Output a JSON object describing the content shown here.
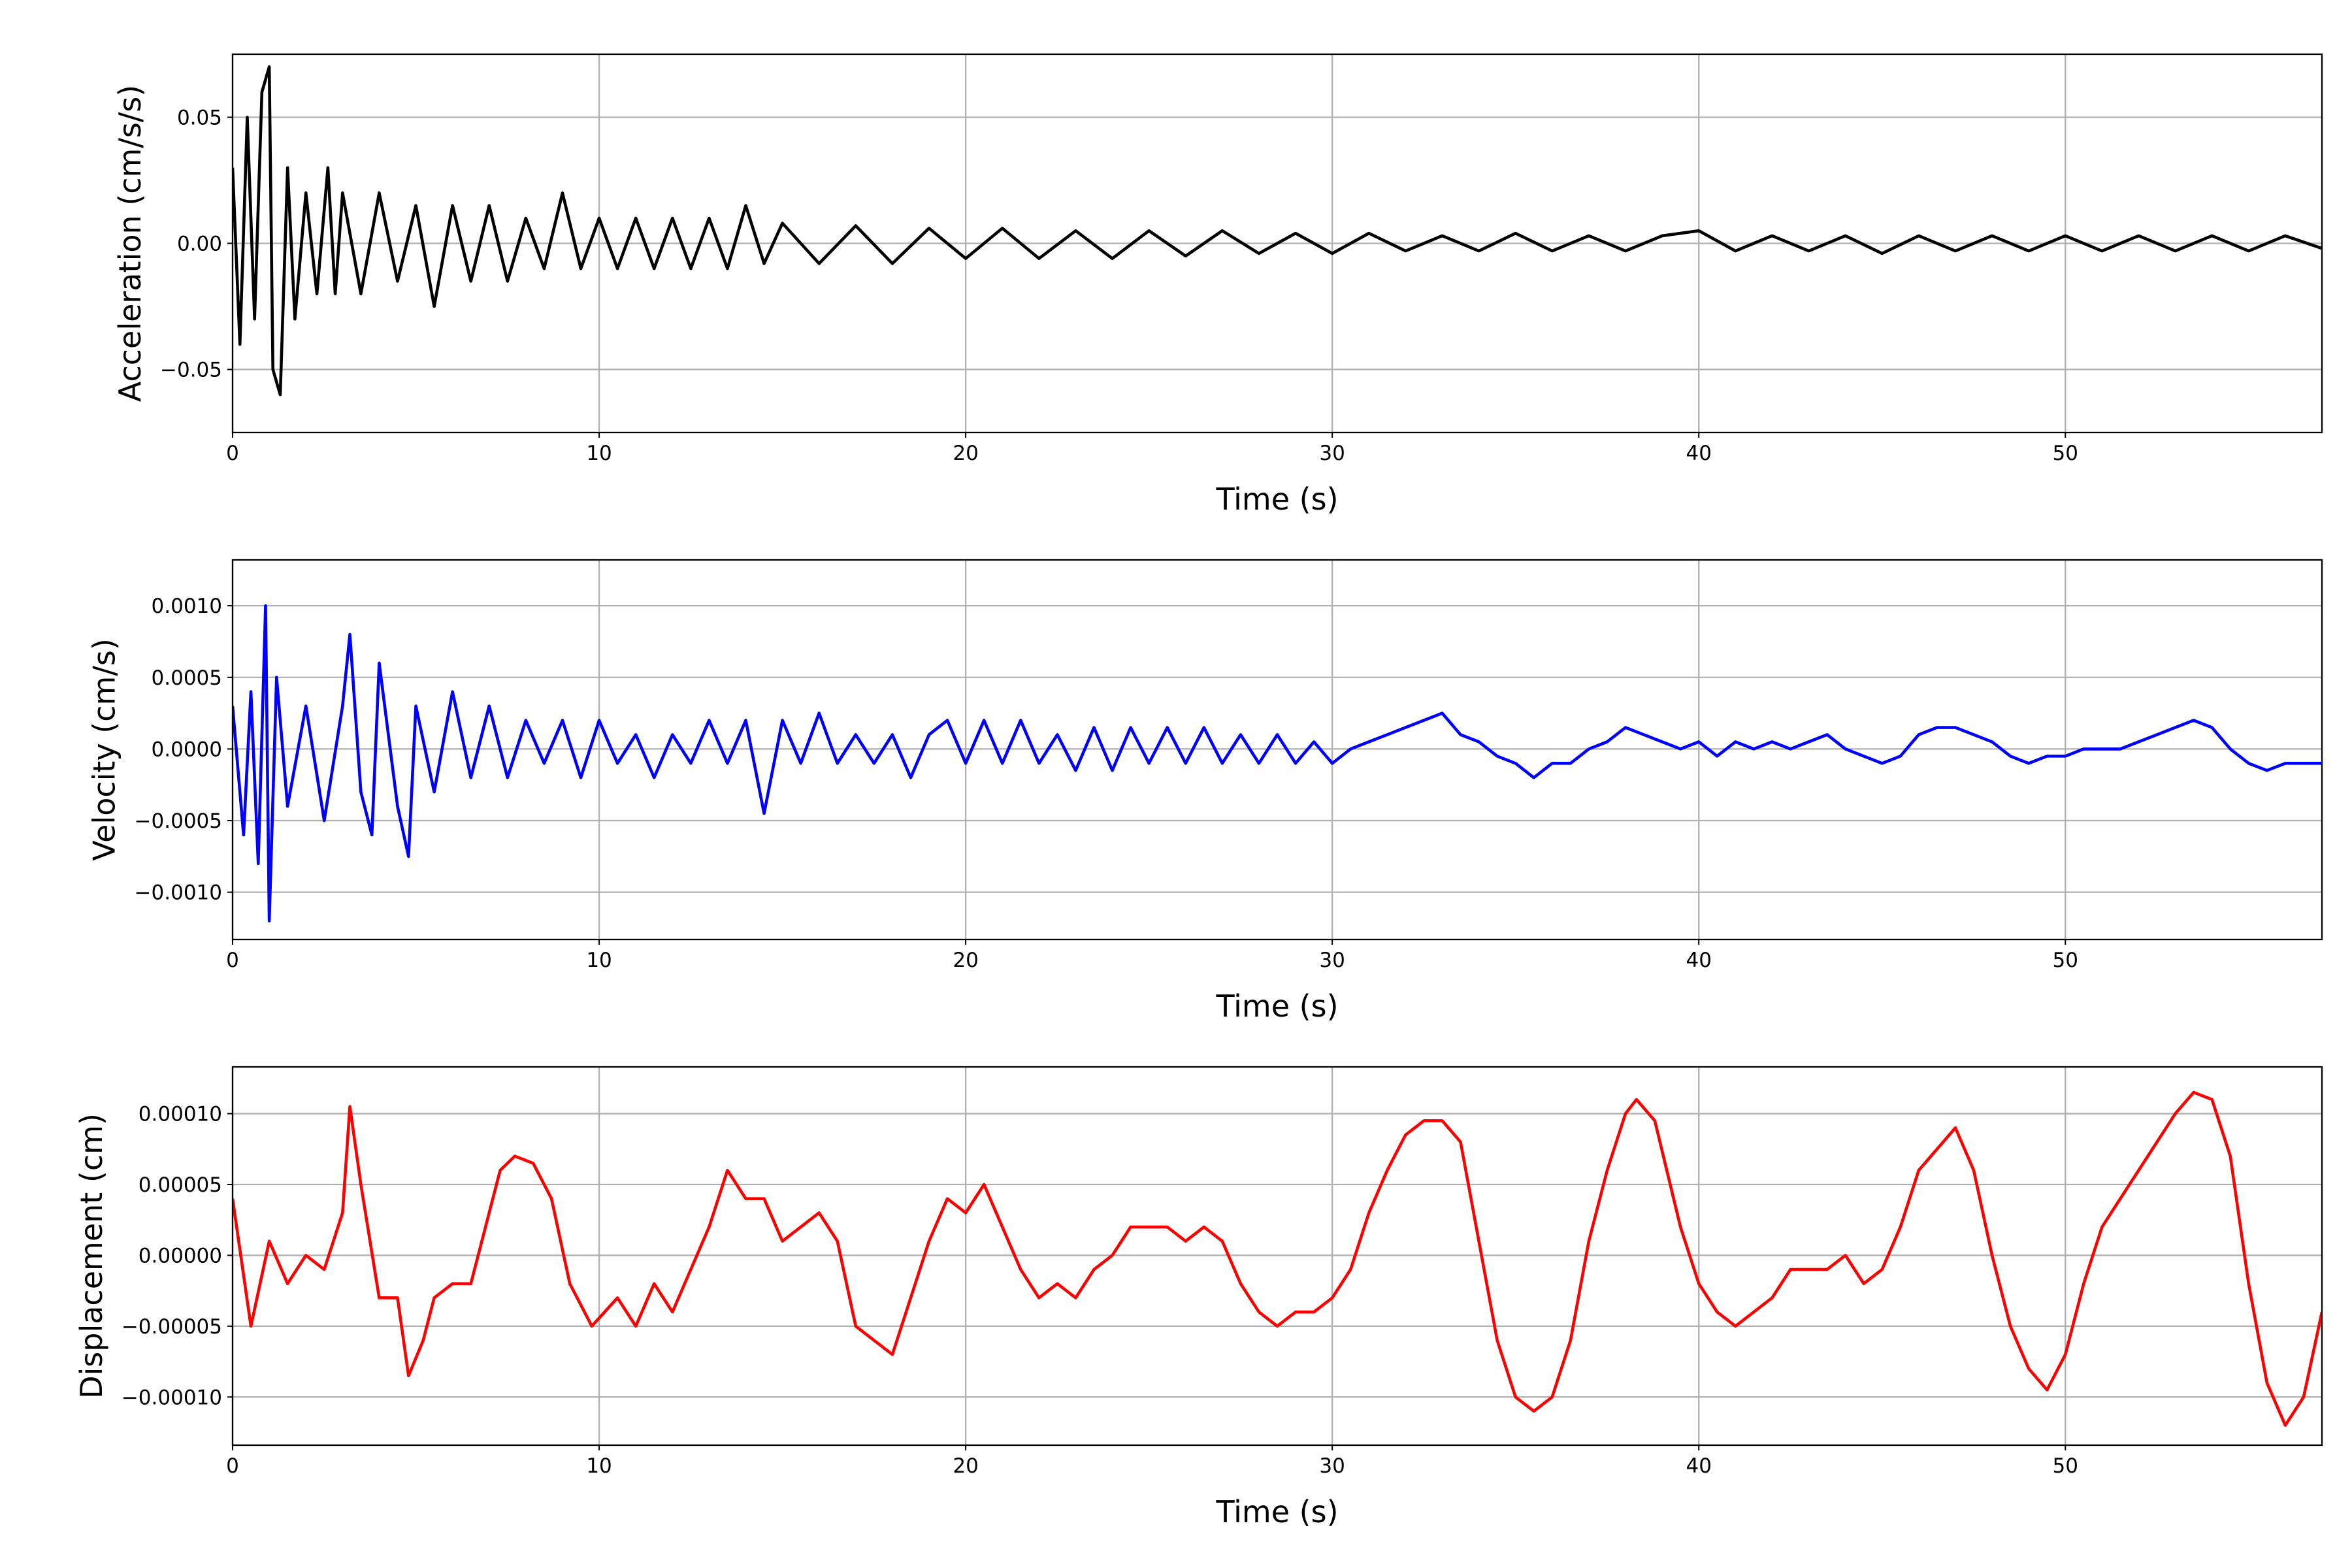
{
  "chart_data": [
    {
      "type": "line",
      "xlabel": "Time (s)",
      "ylabel": "Acceleration (cm/s/s)",
      "color": "#000000",
      "grid": true,
      "xlim": [
        0,
        57
      ],
      "xticks": [
        0,
        10,
        20,
        30,
        40,
        50
      ],
      "ylim": [
        -0.075,
        0.075
      ],
      "yticks": [
        {
          "value": -0.05,
          "label": "−0.05"
        },
        {
          "value": 0,
          "label": "0.00"
        },
        0.05
      ],
      "x": [
        0,
        0.2,
        0.4,
        0.6,
        0.8,
        1.0,
        1.1,
        1.3,
        1.5,
        1.7,
        2,
        2.3,
        2.6,
        2.8,
        3,
        3.5,
        4,
        4.5,
        5,
        5.5,
        6,
        6.5,
        7,
        7.5,
        8,
        8.5,
        9,
        9.5,
        10,
        10.5,
        11,
        11.5,
        12,
        12.5,
        13,
        13.5,
        14,
        14.5,
        15,
        16,
        17,
        18,
        19,
        20,
        21,
        22,
        23,
        24,
        25,
        26,
        27,
        28,
        29,
        30,
        31,
        32,
        33,
        34,
        35,
        36,
        37,
        38,
        39,
        40,
        41,
        42,
        43,
        44,
        45,
        46,
        47,
        48,
        49,
        50,
        51,
        52,
        53,
        54,
        55,
        56,
        57
      ],
      "values": [
        0.03,
        -0.04,
        0.05,
        -0.03,
        0.06,
        0.07,
        -0.05,
        -0.06,
        0.03,
        -0.03,
        0.02,
        -0.02,
        0.03,
        -0.02,
        0.02,
        -0.02,
        0.02,
        -0.015,
        0.015,
        -0.025,
        0.015,
        -0.015,
        0.015,
        -0.015,
        0.01,
        -0.01,
        0.02,
        -0.01,
        0.01,
        -0.01,
        0.01,
        -0.01,
        0.01,
        -0.01,
        0.01,
        -0.01,
        0.015,
        -0.008,
        0.008,
        -0.008,
        0.007,
        -0.008,
        0.006,
        -0.006,
        0.006,
        -0.006,
        0.005,
        -0.006,
        0.005,
        -0.005,
        0.005,
        -0.004,
        0.004,
        -0.004,
        0.004,
        -0.003,
        0.003,
        -0.003,
        0.004,
        -0.003,
        0.003,
        -0.003,
        0.003,
        0.005,
        -0.003,
        0.003,
        -0.003,
        0.003,
        -0.004,
        0.003,
        -0.003,
        0.003,
        -0.003,
        0.003,
        -0.003,
        0.003,
        -0.003,
        0.003,
        -0.003,
        0.003,
        -0.002
      ]
    },
    {
      "type": "line",
      "xlabel": "Time (s)",
      "ylabel": "Velocity (cm/s)",
      "color": "#0000ff",
      "grid": true,
      "xlim": [
        0,
        57
      ],
      "xticks": [
        0,
        10,
        20,
        30,
        40,
        50
      ],
      "ylim": [
        -0.00133,
        0.00132
      ],
      "yticks": [
        {
          "value": -0.001,
          "label": "−0.0010"
        },
        {
          "value": -0.0005,
          "label": "−0.0005"
        },
        {
          "value": 0,
          "label": "0.0000"
        },
        {
          "value": 0.0005,
          "label": "0.0005"
        },
        {
          "value": 0.001,
          "label": "0.0010"
        }
      ],
      "x": [
        0,
        0.3,
        0.5,
        0.7,
        0.9,
        1.0,
        1.2,
        1.5,
        2,
        2.5,
        3,
        3.2,
        3.5,
        3.8,
        4,
        4.5,
        4.8,
        5,
        5.5,
        6,
        6.5,
        7,
        7.5,
        8,
        8.5,
        9,
        9.5,
        10,
        10.5,
        11,
        11.5,
        12,
        12.5,
        13,
        13.5,
        14,
        14.5,
        15,
        15.5,
        16,
        16.5,
        17,
        17.5,
        18,
        18.5,
        19,
        19.5,
        20,
        20.5,
        21,
        21.5,
        22,
        22.5,
        23,
        23.5,
        24,
        24.5,
        25,
        25.5,
        26,
        26.5,
        27,
        27.5,
        28,
        28.5,
        29,
        29.5,
        30,
        30.5,
        31,
        31.5,
        32,
        32.5,
        33,
        33.5,
        34,
        34.5,
        35,
        35.5,
        36,
        36.5,
        37,
        37.5,
        38,
        38.5,
        39,
        39.5,
        40,
        40.5,
        41,
        41.5,
        42,
        42.5,
        43,
        43.5,
        44,
        44.5,
        45,
        45.5,
        46,
        46.5,
        47,
        47.5,
        48,
        48.5,
        49,
        49.5,
        50,
        50.5,
        51,
        51.5,
        52,
        52.5,
        53,
        53.5,
        54,
        54.5,
        55,
        55.5,
        56,
        56.5,
        57
      ],
      "values": [
        0.0003,
        -0.0006,
        0.0004,
        -0.0008,
        0.001,
        -0.0012,
        0.0005,
        -0.0004,
        0.0003,
        -0.0005,
        0.0003,
        0.0008,
        -0.0003,
        -0.0006,
        0.0006,
        -0.0004,
        -0.00075,
        0.0003,
        -0.0003,
        0.0004,
        -0.0002,
        0.0003,
        -0.0002,
        0.0002,
        -0.0001,
        0.0002,
        -0.0002,
        0.0002,
        -0.0001,
        0.0001,
        -0.0002,
        0.0001,
        -0.0001,
        0.0002,
        -0.0001,
        0.0002,
        -0.00045,
        0.0002,
        -0.0001,
        0.00025,
        -0.0001,
        0.0001,
        -0.0001,
        0.0001,
        -0.0002,
        0.0001,
        0.0002,
        -0.0001,
        0.0002,
        -0.0001,
        0.0002,
        -0.0001,
        0.0001,
        -0.00015,
        0.00015,
        -0.00015,
        0.00015,
        -0.0001,
        0.00015,
        -0.0001,
        0.00015,
        -0.0001,
        0.0001,
        -0.0001,
        0.0001,
        -0.0001,
        5e-05,
        -0.0001,
        0,
        5e-05,
        0.0001,
        0.00015,
        0.0002,
        0.00025,
        0.0001,
        5e-05,
        -5e-05,
        -0.0001,
        -0.0002,
        -0.0001,
        -0.0001,
        0,
        5e-05,
        0.00015,
        0.0001,
        5e-05,
        0,
        5e-05,
        -5e-05,
        5e-05,
        0,
        5e-05,
        0,
        5e-05,
        0.0001,
        0,
        -5e-05,
        -0.0001,
        -5e-05,
        0.0001,
        0.00015,
        0.00015,
        0.0001,
        5e-05,
        -5e-05,
        -0.0001,
        -5e-05,
        -5e-05,
        0,
        0,
        0,
        5e-05,
        0.0001,
        0.00015,
        0.0002,
        0.00015,
        0,
        -0.0001,
        -0.00015,
        -0.0001,
        -0.0001,
        -0.0001
      ]
    },
    {
      "type": "line",
      "xlabel": "Time (s)",
      "ylabel": "Displacement (cm)",
      "color": "#ff0000",
      "grid": true,
      "xlim": [
        0,
        57
      ],
      "xticks": [
        0,
        10,
        20,
        30,
        40,
        50
      ],
      "ylim": [
        -0.000134,
        0.000133
      ],
      "yticks": [
        {
          "value": -0.0001,
          "label": "−0.00010"
        },
        {
          "value": -5e-05,
          "label": "−0.00005"
        },
        {
          "value": 0,
          "label": "0.00000"
        },
        {
          "value": 5e-05,
          "label": "0.00005"
        },
        {
          "value": 0.0001,
          "label": "0.00010"
        }
      ],
      "x": [
        0,
        0.5,
        1,
        1.5,
        2,
        2.5,
        3,
        3.2,
        3.5,
        4,
        4.5,
        4.8,
        5.2,
        5.5,
        6,
        6.5,
        7,
        7.3,
        7.7,
        8.2,
        8.7,
        9.2,
        9.8,
        10.5,
        11,
        11.5,
        12,
        12.5,
        13,
        13.5,
        14,
        14.5,
        15,
        15.5,
        16,
        16.5,
        17,
        17.5,
        18,
        18.5,
        19,
        19.5,
        20,
        20.5,
        21,
        21.5,
        22,
        22.5,
        23,
        23.5,
        24,
        24.5,
        25,
        25.5,
        26,
        26.5,
        27,
        27.5,
        28,
        28.5,
        29,
        29.5,
        30,
        30.5,
        31,
        31.5,
        32,
        32.5,
        33,
        33.5,
        34,
        34.5,
        35,
        35.5,
        36,
        36.5,
        37,
        37.5,
        38,
        38.3,
        38.8,
        39.5,
        40,
        40.5,
        41,
        41.5,
        42,
        42.5,
        43,
        43.5,
        44,
        44.5,
        45,
        45.5,
        46,
        46.5,
        47,
        47.5,
        48,
        48.5,
        49,
        49.5,
        50,
        50.5,
        51,
        51.5,
        52,
        52.5,
        53,
        53.5,
        54,
        54.5,
        55,
        55.5,
        56,
        56.5,
        57
      ],
      "values": [
        4e-05,
        -5e-05,
        1e-05,
        -2e-05,
        0,
        -1e-05,
        3e-05,
        0.000105,
        5e-05,
        -3e-05,
        -3e-05,
        -8.5e-05,
        -6e-05,
        -3e-05,
        -2e-05,
        -2e-05,
        3e-05,
        6e-05,
        7e-05,
        6.5e-05,
        4e-05,
        -2e-05,
        -5e-05,
        -3e-05,
        -5e-05,
        -2e-05,
        -4e-05,
        -1e-05,
        2e-05,
        6e-05,
        4e-05,
        4e-05,
        1e-05,
        2e-05,
        3e-05,
        1e-05,
        -5e-05,
        -6e-05,
        -7e-05,
        -3e-05,
        1e-05,
        4e-05,
        3e-05,
        5e-05,
        2e-05,
        -1e-05,
        -3e-05,
        -2e-05,
        -3e-05,
        -1e-05,
        0,
        2e-05,
        2e-05,
        2e-05,
        1e-05,
        2e-05,
        1e-05,
        -2e-05,
        -4e-05,
        -5e-05,
        -4e-05,
        -4e-05,
        -3e-05,
        -1e-05,
        3e-05,
        6e-05,
        8.5e-05,
        9.5e-05,
        9.5e-05,
        8e-05,
        1e-05,
        -6e-05,
        -0.0001,
        -0.00011,
        -0.0001,
        -6e-05,
        1e-05,
        6e-05,
        0.0001,
        0.00011,
        9.5e-05,
        2e-05,
        -2e-05,
        -4e-05,
        -5e-05,
        -4e-05,
        -3e-05,
        -1e-05,
        -1e-05,
        -1e-05,
        0,
        -2e-05,
        -1e-05,
        2e-05,
        6e-05,
        7.5e-05,
        9e-05,
        6e-05,
        0,
        -5e-05,
        -8e-05,
        -9.5e-05,
        -7e-05,
        -2e-05,
        2e-05,
        4e-05,
        6e-05,
        8e-05,
        0.0001,
        0.000115,
        0.00011,
        7e-05,
        -2e-05,
        -9e-05,
        -0.00012,
        -0.0001,
        -4e-05
      ]
    }
  ]
}
